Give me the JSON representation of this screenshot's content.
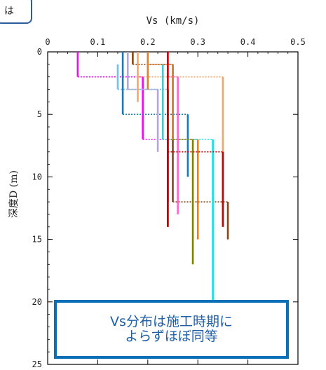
{
  "callout_fragment": "は",
  "note": {
    "line1": "Vs分布は施工時期に",
    "line2": "よらずほぼ同等"
  },
  "chart_data": {
    "type": "step-profile",
    "xlabel": "Vs (km/s)",
    "ylabel": "深度D (m)",
    "xlim": [
      0,
      0.5
    ],
    "ylim": [
      0,
      25
    ],
    "y_inverted": true,
    "x_axis_position": "top",
    "xticks": [
      "0",
      "0.1",
      "0.2",
      "0.3",
      "0.4",
      "0.5"
    ],
    "yticks": [
      "0",
      "5",
      "10",
      "15",
      "20",
      "25"
    ],
    "grid": false,
    "series": [
      {
        "color": "#ff00ff",
        "steps": [
          {
            "vs": 0.06,
            "top": 0,
            "bottom": 2
          },
          {
            "vs": 0.19,
            "top": 2,
            "bottom": 7
          },
          {
            "vs": 0.24,
            "top": 7,
            "bottom": 12
          }
        ]
      },
      {
        "color": "#7bbde8",
        "steps": [
          {
            "vs": 0.14,
            "top": 1,
            "bottom": 3
          },
          {
            "vs": 0.24,
            "top": 3,
            "bottom": 12
          }
        ]
      },
      {
        "color": "#1f77b4",
        "steps": [
          {
            "vs": 0.15,
            "top": 0,
            "bottom": 5
          },
          {
            "vs": 0.28,
            "top": 5,
            "bottom": 10
          }
        ]
      },
      {
        "color": "#b3a6d9",
        "steps": [
          {
            "vs": 0.16,
            "top": 0,
            "bottom": 3
          },
          {
            "vs": 0.22,
            "top": 3,
            "bottom": 8
          }
        ]
      },
      {
        "color": "#8b4513",
        "steps": [
          {
            "vs": 0.17,
            "top": 0,
            "bottom": 1
          },
          {
            "vs": 0.25,
            "top": 1,
            "bottom": 12
          },
          {
            "vs": 0.36,
            "top": 12,
            "bottom": 15
          }
        ]
      },
      {
        "color": "#f5a66b",
        "steps": [
          {
            "vs": 0.18,
            "top": 0,
            "bottom": 4
          },
          {
            "vs": 0.35,
            "top": 2,
            "bottom": 14
          }
        ]
      },
      {
        "color": "#e87d1e",
        "steps": [
          {
            "vs": 0.2,
            "top": 0,
            "bottom": 3
          },
          {
            "vs": 0.25,
            "top": 1,
            "bottom": 7
          },
          {
            "vs": 0.3,
            "top": 7,
            "bottom": 15
          }
        ]
      },
      {
        "color": "#00e5ee",
        "steps": [
          {
            "vs": 0.23,
            "top": 1,
            "bottom": 7
          },
          {
            "vs": 0.33,
            "top": 7,
            "bottom": 20
          }
        ]
      },
      {
        "color": "#808000",
        "steps": [
          {
            "vs": 0.24,
            "top": 3,
            "bottom": 7
          },
          {
            "vs": 0.29,
            "top": 7,
            "bottom": 17
          }
        ]
      },
      {
        "color": "#ff66cc",
        "steps": [
          {
            "vs": 0.24,
            "top": 0,
            "bottom": 2
          },
          {
            "vs": 0.26,
            "top": 2,
            "bottom": 13
          }
        ]
      },
      {
        "color": "#cc0000",
        "steps": [
          {
            "vs": 0.24,
            "top": 0,
            "bottom": 14
          },
          {
            "vs": 0.35,
            "top": 8,
            "bottom": 14
          }
        ]
      },
      {
        "color": "#a01010",
        "steps": [
          {
            "vs": 0.24,
            "top": 3,
            "bottom": 14
          }
        ]
      }
    ]
  }
}
